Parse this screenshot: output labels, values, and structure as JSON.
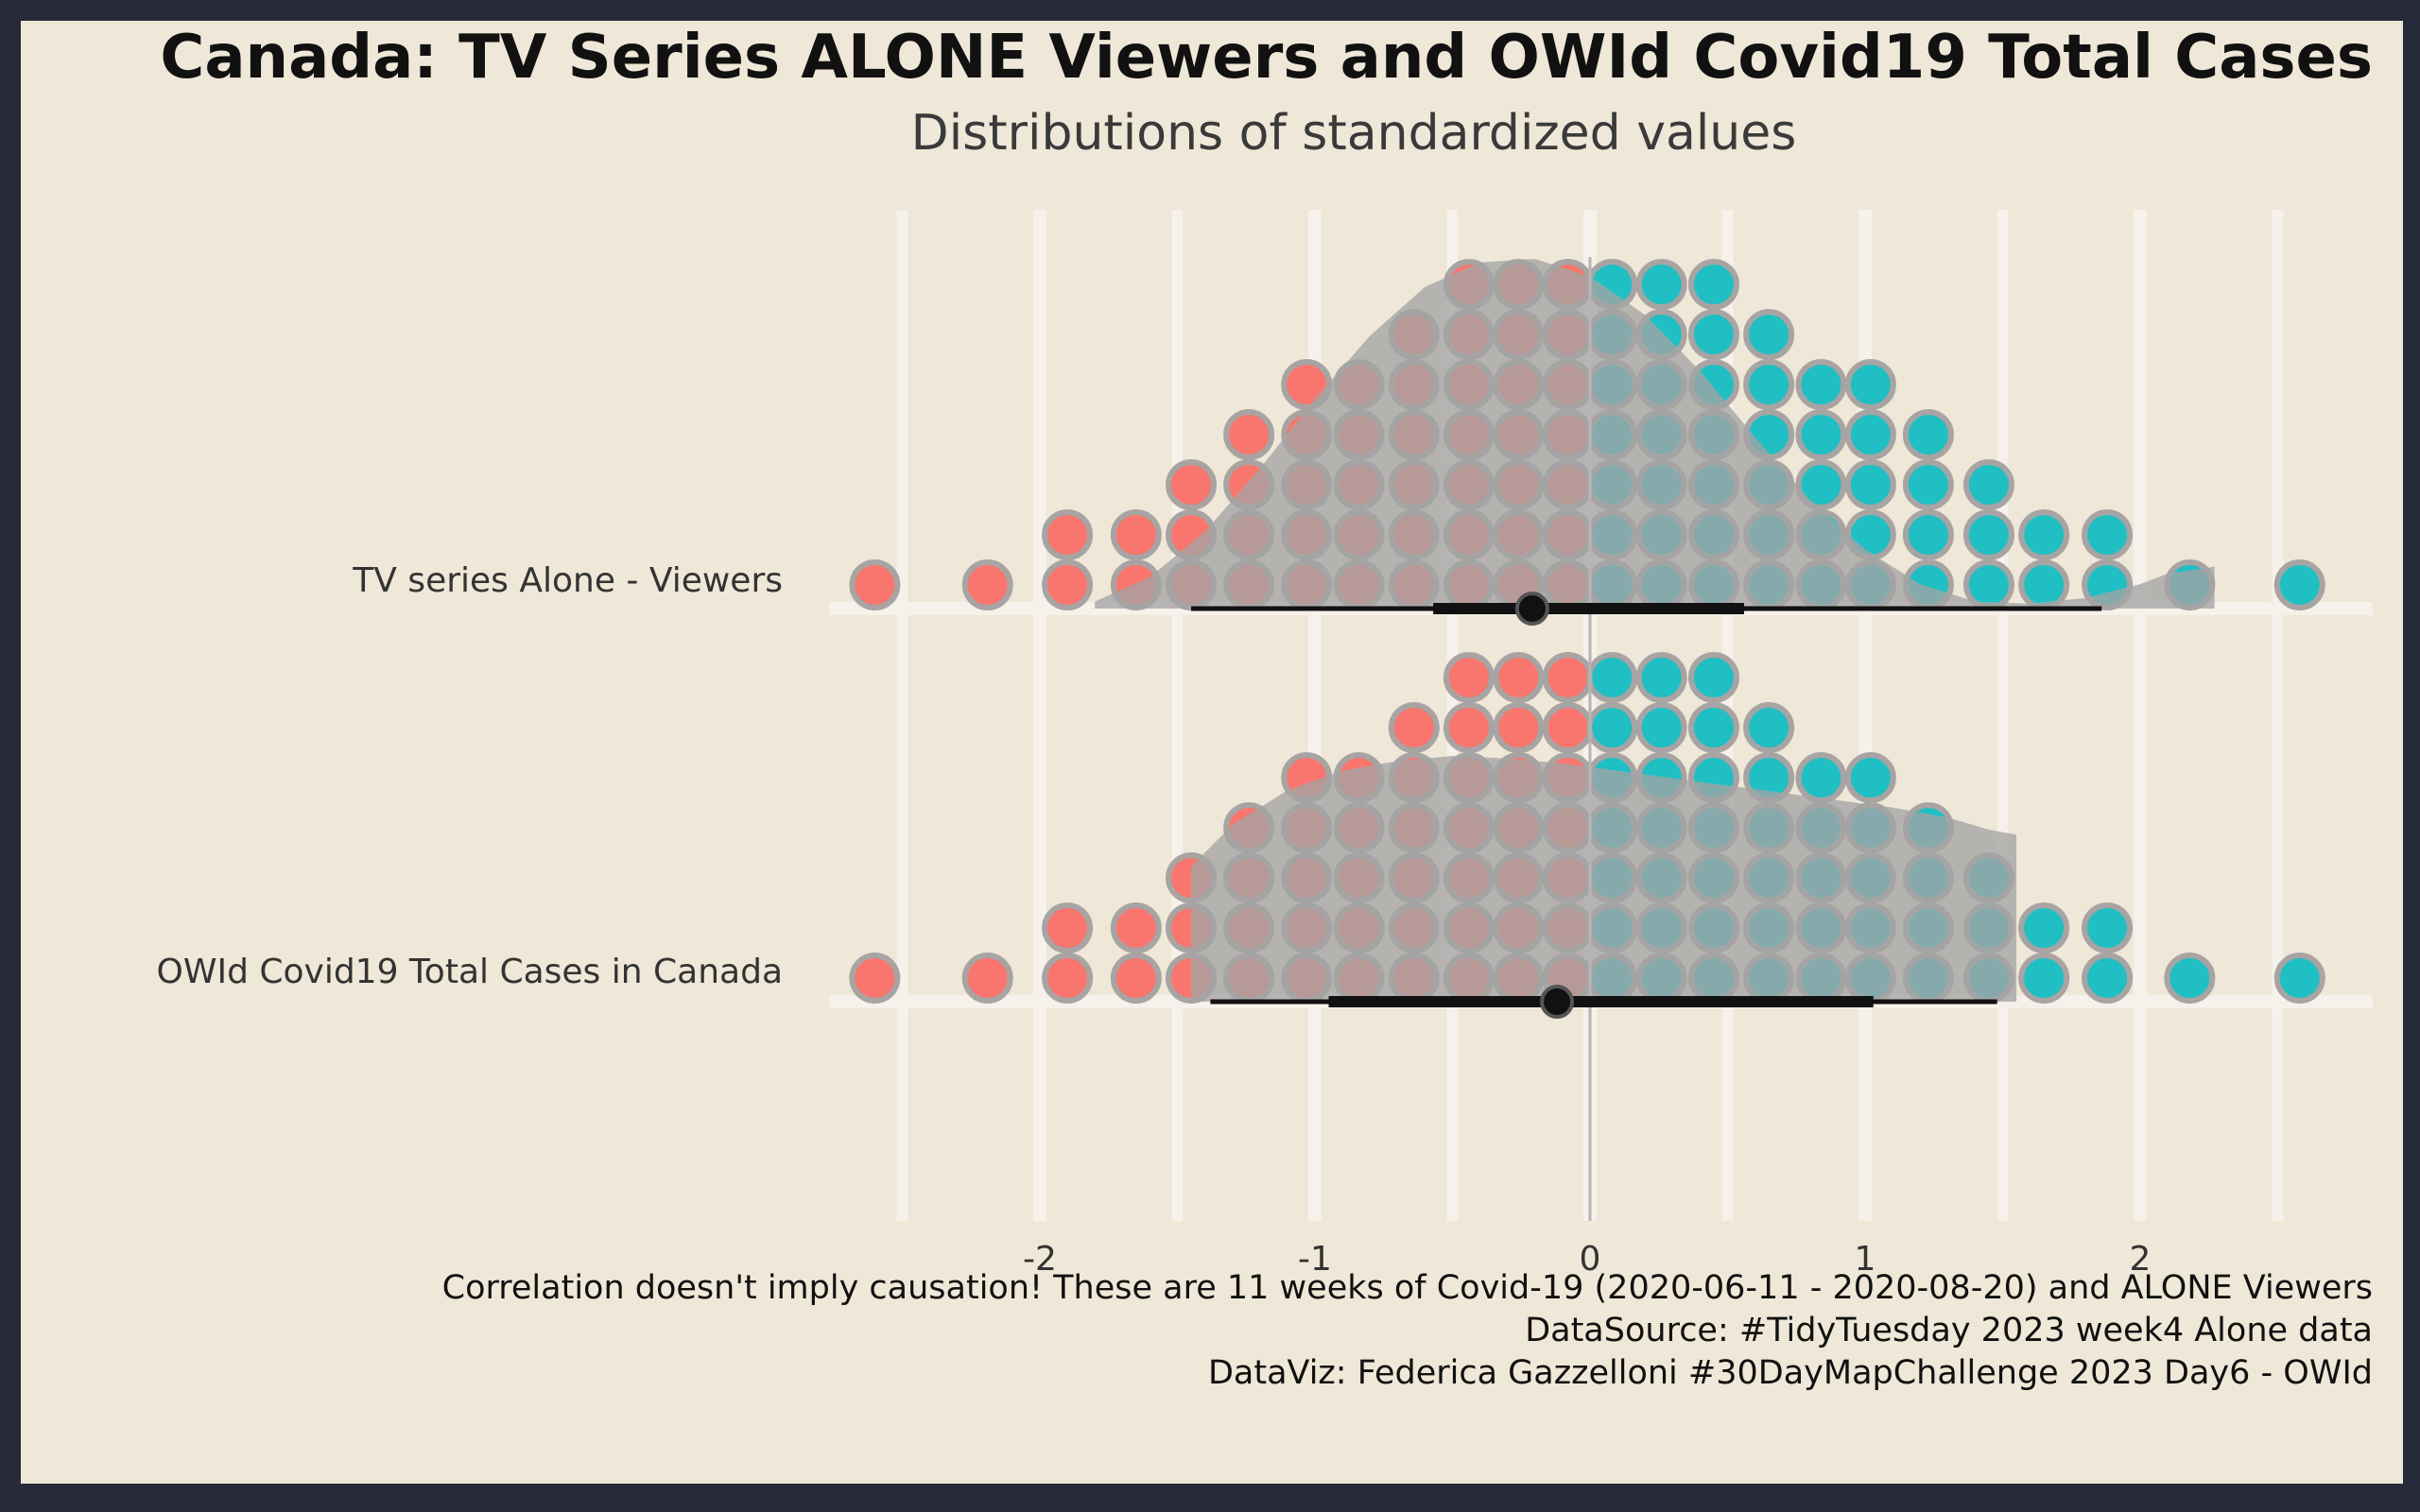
{
  "chart_data": {
    "type": "dotplot-halfeye",
    "title": "Canada: TV Series ALONE Viewers and OWId Covid19 Total Cases",
    "subtitle": "Distributions of standardized values",
    "caption": [
      "Correlation doesn't imply causation! These are 11 weeks of Covid-19 (2020-06-11 - 2020-08-20) and ALONE Viewers",
      "DataSource: #TidyTuesday 2023 week4 Alone data",
      "DataViz: Federica Gazzelloni #30DayMapChallenge 2023 Day6 - OWId"
    ],
    "x_ticks": [
      -2,
      -1,
      0,
      1,
      2
    ],
    "x_tick_labels": [
      "-2",
      "-1",
      "0",
      "1",
      "2"
    ],
    "xlim": [
      -2.9,
      2.85
    ],
    "colors": {
      "negative": "#f8766d",
      "positive": "#1fbfc3",
      "dot_outline": "#a7a4a3",
      "density": "#a4a4a4",
      "interval": "#111111",
      "panel_bg": "#efe7d7",
      "grid": "#f6f1ea",
      "page_bg": "#272a38"
    },
    "series": [
      {
        "name": "TV series Alone - Viewers",
        "dot_bins": {
          "x": [
            -2.6,
            -2.19,
            -1.9,
            -1.65,
            -1.45,
            -1.24,
            -1.03,
            -0.84,
            -0.64,
            -0.44,
            -0.26,
            -0.08,
            0.08,
            0.26,
            0.45,
            0.65,
            0.84,
            1.02,
            1.23,
            1.45,
            1.65,
            1.88,
            2.18,
            2.58
          ],
          "counts": [
            1,
            1,
            2,
            2,
            3,
            4,
            5,
            5,
            6,
            7,
            7,
            7,
            7,
            7,
            7,
            6,
            5,
            5,
            4,
            3,
            2,
            2,
            1,
            1
          ]
        },
        "density": {
          "x": [
            -1.8,
            -1.6,
            -1.4,
            -1.2,
            -1.0,
            -0.8,
            -0.6,
            -0.4,
            -0.2,
            0.0,
            0.2,
            0.4,
            0.6,
            0.8,
            1.0,
            1.2,
            1.4,
            1.6,
            1.8,
            2.0,
            2.1,
            2.27
          ],
          "y": [
            0.02,
            0.09,
            0.22,
            0.4,
            0.6,
            0.78,
            0.92,
            0.99,
            1.0,
            0.95,
            0.84,
            0.68,
            0.49,
            0.31,
            0.17,
            0.07,
            0.02,
            0.015,
            0.03,
            0.07,
            0.1,
            0.12
          ]
        },
        "point": -0.21,
        "interval_inner": [
          -0.57,
          0.56
        ],
        "interval_outer": [
          -1.45,
          1.86
        ]
      },
      {
        "name": "OWId Covid19 Total Cases in Canada",
        "dot_bins": {
          "x": [
            -2.6,
            -2.19,
            -1.9,
            -1.65,
            -1.45,
            -1.24,
            -1.03,
            -0.84,
            -0.64,
            -0.44,
            -0.26,
            -0.08,
            0.08,
            0.26,
            0.45,
            0.65,
            0.84,
            1.02,
            1.23,
            1.45,
            1.65,
            1.88,
            2.18,
            2.58
          ],
          "counts": [
            1,
            1,
            2,
            2,
            3,
            4,
            5,
            5,
            6,
            7,
            7,
            7,
            7,
            7,
            7,
            6,
            5,
            5,
            4,
            3,
            2,
            2,
            1,
            1
          ]
        },
        "density": {
          "x": [
            -1.45,
            -1.3,
            -1.1,
            -0.9,
            -0.7,
            -0.5,
            -0.3,
            -0.1,
            0.1,
            0.3,
            0.5,
            0.7,
            0.9,
            1.1,
            1.3,
            1.45,
            1.55
          ],
          "y": [
            0.55,
            0.72,
            0.86,
            0.94,
            0.98,
            1.0,
            0.99,
            0.97,
            0.94,
            0.91,
            0.88,
            0.85,
            0.82,
            0.79,
            0.75,
            0.7,
            0.68
          ]
        },
        "point": -0.12,
        "interval_inner": [
          -0.95,
          1.03
        ],
        "interval_outer": [
          -1.38,
          1.48
        ]
      }
    ]
  }
}
